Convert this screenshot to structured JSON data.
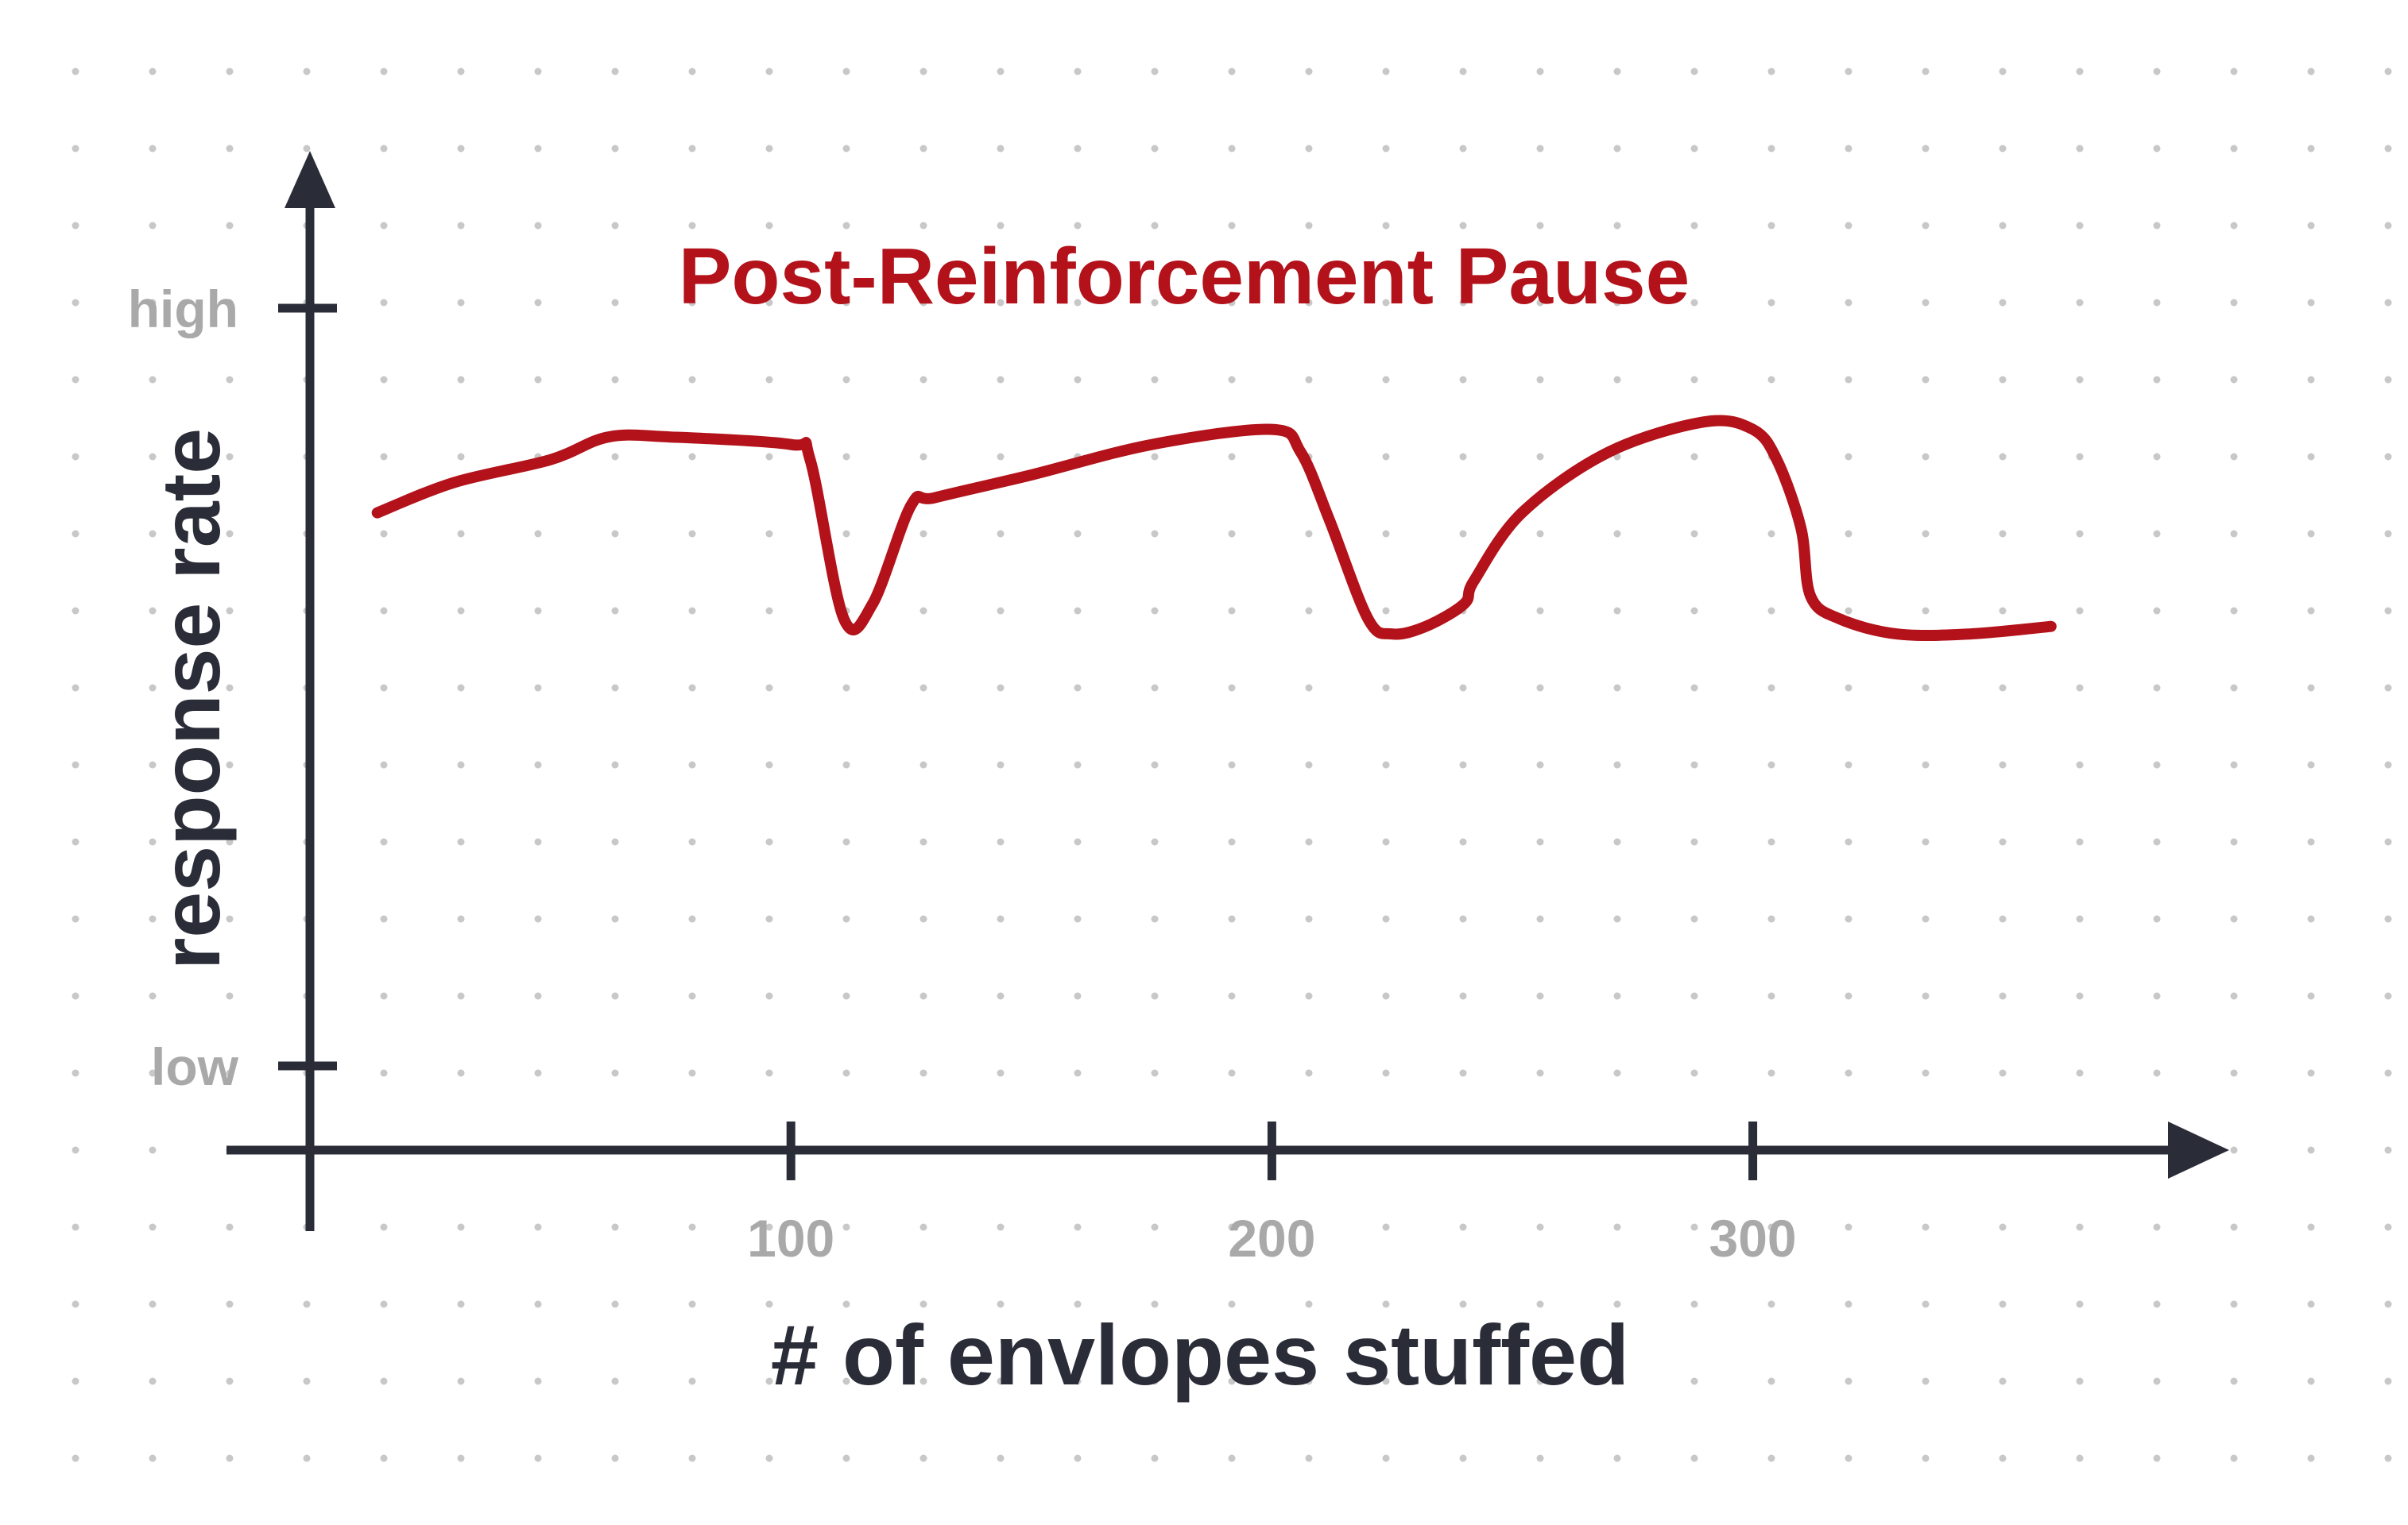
{
  "chart_data": {
    "type": "line",
    "title": "Post-Reinforcement Pause",
    "xlabel": "# of envlopes stuffed",
    "ylabel": "response rate",
    "x_ticks": [
      {
        "value": 100,
        "label": "100"
      },
      {
        "value": 200,
        "label": "200"
      },
      {
        "value": 300,
        "label": "300"
      }
    ],
    "y_ticks": [
      {
        "value": 1,
        "label": "high"
      },
      {
        "value": 0,
        "label": "low"
      }
    ],
    "xlim": [
      0,
      385
    ],
    "ylim": [
      0,
      1
    ],
    "grid": "dotted background",
    "series_color": "#b3121a",
    "axis_color": "#2a2d38",
    "tick_label_color": "#a9a9a9",
    "series": [
      {
        "x": [
          14,
          30,
          50,
          62,
          75,
          100,
          104,
          111,
          117,
          125,
          130,
          150,
          175,
          200,
          206,
          212,
          220,
          225,
          232,
          240,
          242,
          252,
          270,
          290,
          300,
          305,
          310,
          312,
          318,
          330,
          345,
          362
        ],
        "y": [
          0.73,
          0.77,
          0.8,
          0.83,
          0.83,
          0.82,
          0.8,
          0.59,
          0.61,
          0.74,
          0.75,
          0.78,
          0.82,
          0.84,
          0.81,
          0.72,
          0.59,
          0.57,
          0.58,
          0.61,
          0.64,
          0.73,
          0.81,
          0.85,
          0.84,
          0.8,
          0.71,
          0.62,
          0.59,
          0.57,
          0.57,
          0.58
        ]
      }
    ]
  }
}
